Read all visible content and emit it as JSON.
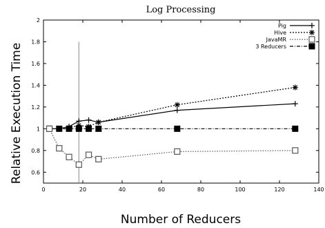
{
  "chart_data": {
    "type": "line",
    "title": "Log Processing",
    "xlabel": "Number of Reducers",
    "ylabel": "Relative Execution Time",
    "xlim": [
      0,
      140
    ],
    "ylim": [
      0.5,
      2
    ],
    "xticks": [
      0,
      20,
      40,
      60,
      80,
      100,
      120,
      140
    ],
    "yticks": [
      0.6,
      0.8,
      1,
      1.2,
      1.4,
      1.6,
      1.8,
      2
    ],
    "xtick_labels": [
      "0",
      "20",
      "40",
      "60",
      "80",
      "100",
      "120",
      "140"
    ],
    "ytick_labels": [
      "0.6",
      "0.8",
      "1",
      "1.2",
      "1.4",
      "1.6",
      "1.8",
      "2"
    ],
    "grid": false,
    "legend_position": "top-right",
    "vertical_marker_x": 18,
    "series": [
      {
        "name": "Pig",
        "marker": "plus",
        "line_style": "solid",
        "color": "#000000",
        "x": [
          3,
          8,
          13,
          18,
          23,
          28,
          68,
          128
        ],
        "y": [
          1.0,
          1.0,
          1.02,
          1.07,
          1.08,
          1.06,
          1.17,
          1.23
        ]
      },
      {
        "name": "Hive",
        "marker": "asterisk",
        "line_style": "dotted",
        "color": "#000000",
        "x": [
          3,
          8,
          13,
          18,
          23,
          28,
          68,
          128
        ],
        "y": [
          1.0,
          1.0,
          1.01,
          1.03,
          1.02,
          1.06,
          1.22,
          1.38
        ]
      },
      {
        "name": "JavaMR",
        "marker": "open-square",
        "line_style": "dotted-gray",
        "color": "#555555",
        "x": [
          3,
          8,
          13,
          18,
          23,
          28,
          68,
          128
        ],
        "y": [
          1.0,
          0.82,
          0.74,
          0.67,
          0.76,
          0.72,
          0.79,
          0.8
        ]
      },
      {
        "name": "3 Reducers",
        "marker": "filled-square",
        "line_style": "dash-dot",
        "color": "#000000",
        "x": [
          3,
          8,
          13,
          18,
          23,
          28,
          68,
          128
        ],
        "y": [
          1.0,
          1.0,
          1.0,
          1.0,
          1.0,
          1.0,
          1.0,
          1.0
        ]
      }
    ]
  }
}
